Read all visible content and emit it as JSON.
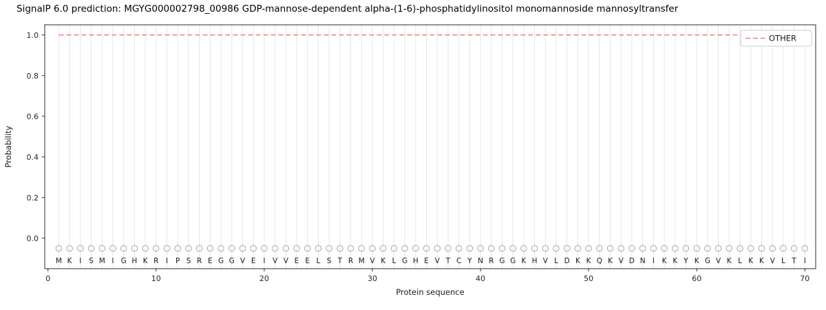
{
  "chart_data": {
    "type": "line",
    "title": "SignalP 6.0 prediction: MGYG000002798_00986 GDP-mannose-dependent alpha-(1-6)-phosphatidylinositol monomannoside mannosyltransfer",
    "xlabel": "Protein sequence",
    "ylabel": "Probability",
    "xlim": [
      -0.3,
      71
    ],
    "ylim": [
      -0.15,
      1.05
    ],
    "x_ticks": [
      0,
      10,
      20,
      30,
      40,
      50,
      60,
      70
    ],
    "y_ticks": [
      0.0,
      0.2,
      0.4,
      0.6,
      0.8,
      1.0
    ],
    "grid": "vertical line at every residue position",
    "legend": {
      "position": "upper right",
      "entries": [
        {
          "label": "OTHER",
          "style": "dashed",
          "color": "#f08080"
        }
      ]
    },
    "series": [
      {
        "name": "OTHER",
        "style": "dashed",
        "color": "#f08080",
        "x_start": 1,
        "values": [
          1.0,
          1.0,
          1.0,
          1.0,
          1.0,
          1.0,
          1.0,
          1.0,
          1.0,
          1.0,
          1.0,
          1.0,
          1.0,
          1.0,
          1.0,
          1.0,
          1.0,
          1.0,
          1.0,
          1.0,
          1.0,
          1.0,
          1.0,
          1.0,
          1.0,
          1.0,
          1.0,
          1.0,
          1.0,
          1.0,
          1.0,
          1.0,
          1.0,
          1.0,
          1.0,
          1.0,
          1.0,
          1.0,
          1.0,
          1.0,
          1.0,
          1.0,
          1.0,
          1.0,
          1.0,
          1.0,
          1.0,
          1.0,
          1.0,
          1.0,
          1.0,
          1.0,
          1.0,
          1.0,
          1.0,
          1.0,
          1.0,
          1.0,
          1.0,
          1.0,
          1.0,
          1.0,
          1.0,
          1.0,
          1.0,
          1.0,
          1.0,
          1.0,
          1.0,
          1.0
        ]
      }
    ],
    "sequence": [
      "M",
      "K",
      "I",
      "S",
      "M",
      "I",
      "G",
      "H",
      "K",
      "R",
      "I",
      "P",
      "S",
      "R",
      "E",
      "G",
      "G",
      "V",
      "E",
      "I",
      "V",
      "V",
      "E",
      "E",
      "L",
      "S",
      "T",
      "R",
      "M",
      "V",
      "K",
      "L",
      "G",
      "H",
      "E",
      "V",
      "T",
      "C",
      "Y",
      "N",
      "R",
      "G",
      "G",
      "K",
      "H",
      "V",
      "L",
      "D",
      "K",
      "K",
      "Q",
      "K",
      "V",
      "D",
      "N",
      "I",
      "K",
      "K",
      "Y",
      "K",
      "G",
      "V",
      "K",
      "L",
      "K",
      "K",
      "V",
      "L",
      "T",
      "I"
    ],
    "marker_row": {
      "shape": "open-circle",
      "y": -0.05,
      "color": "#a8a8a8"
    },
    "letter_row_y": -0.11
  }
}
